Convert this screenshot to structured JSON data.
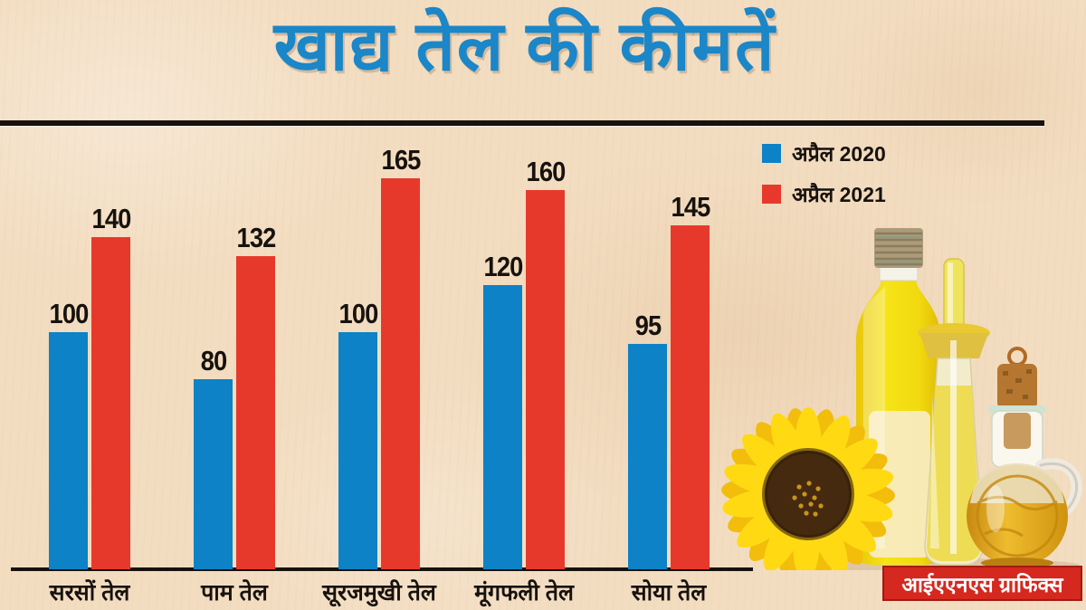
{
  "title": "खाद्य तेल की कीमतें",
  "credit": "आईएएनएस ग्राफिक्स",
  "colors": {
    "blue_2020": "#0d82c6",
    "red_2021": "#e7392b",
    "title_blue": "#1b86c8",
    "background_paper": "#f3ddc1",
    "text_black": "#17120e",
    "credit_red": "#d5281f"
  },
  "legend": [
    {
      "key": "apr-2020",
      "label": "अप्रैल 2020",
      "color": "#0d82c6"
    },
    {
      "key": "apr-2021",
      "label": "अप्रैल 2021",
      "color": "#e7392b"
    }
  ],
  "chart_data": {
    "type": "bar",
    "title": "खाद्य तेल की कीमतें",
    "categories": [
      "सरसों तेल",
      "पाम तेल",
      "सूरजमुखी तेल",
      "मूंगफली तेल",
      "सोया तेल"
    ],
    "category_keys": [
      "mustard-oil",
      "palm-oil",
      "sunflower-oil",
      "groundnut-oil",
      "soya-oil"
    ],
    "series": [
      {
        "key": "apr-2020",
        "name": "अप्रैल 2020",
        "color": "#0d82c6",
        "values": [
          100,
          80,
          100,
          120,
          95
        ]
      },
      {
        "key": "apr-2021",
        "name": "अप्रैल 2021",
        "color": "#e7392b",
        "values": [
          140,
          132,
          165,
          160,
          145
        ]
      }
    ],
    "xlabel": "",
    "ylabel": "",
    "ylim": [
      0,
      170
    ],
    "grid": false,
    "value_labels": true,
    "legend_position": "top-right"
  }
}
